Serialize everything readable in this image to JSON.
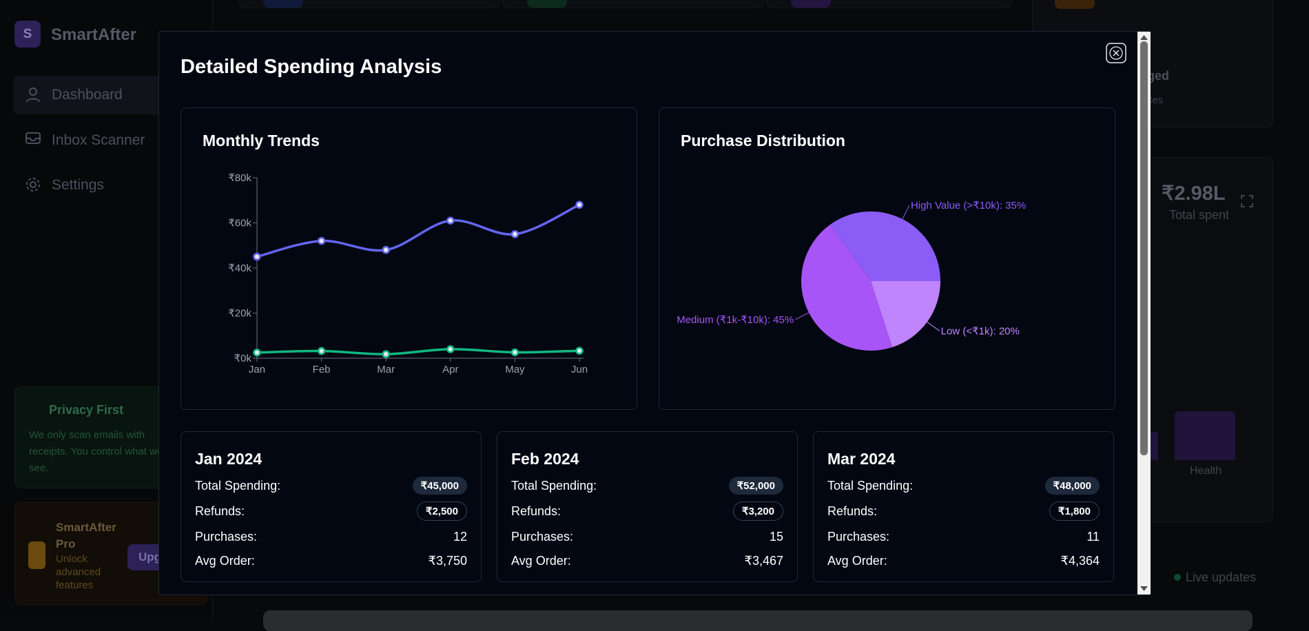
{
  "sidebar": {
    "logo": "S",
    "brand": "SmartAfter",
    "nav": [
      "Dashboard",
      "Inbox Scanner",
      "Settings"
    ],
    "privacy": {
      "title": "Privacy First",
      "text": "We only scan emails with receipts. You control what we see."
    },
    "pro": {
      "title": "SmartAfter Pro",
      "text": "Unlock advanced features",
      "button": "Upgrade"
    }
  },
  "background": {
    "fragments": [
      "ged",
      "ces"
    ],
    "total": "₹2.98L",
    "total_label": "Total spent",
    "category": "Health",
    "live": "Live updates"
  },
  "modal": {
    "title": "Detailed Spending Analysis",
    "months": [
      {
        "title": "Jan 2024",
        "rows": [
          {
            "label": "Total Spending:",
            "value": "₹45,000"
          },
          {
            "label": "Refunds:",
            "value": "₹2,500"
          },
          {
            "label": "Purchases:",
            "value": "12"
          },
          {
            "label": "Avg Order:",
            "value": "₹3,750"
          }
        ]
      },
      {
        "title": "Feb 2024",
        "rows": [
          {
            "label": "Total Spending:",
            "value": "₹52,000"
          },
          {
            "label": "Refunds:",
            "value": "₹3,200"
          },
          {
            "label": "Purchases:",
            "value": "15"
          },
          {
            "label": "Avg Order:",
            "value": "₹3,467"
          }
        ]
      },
      {
        "title": "Mar 2024",
        "rows": [
          {
            "label": "Total Spending:",
            "value": "₹48,000"
          },
          {
            "label": "Refunds:",
            "value": "₹1,800"
          },
          {
            "label": "Purchases:",
            "value": "11"
          },
          {
            "label": "Avg Order:",
            "value": "₹4,364"
          }
        ]
      }
    ]
  },
  "chart_data": [
    {
      "type": "line",
      "title": "Monthly Trends",
      "categories": [
        "Jan",
        "Feb",
        "Mar",
        "Apr",
        "May",
        "Jun"
      ],
      "series": [
        {
          "color": "#6366f1",
          "values": [
            45000,
            52000,
            48000,
            61000,
            55000,
            68000
          ]
        },
        {
          "color": "#10b981",
          "values": [
            2500,
            3200,
            1800,
            4000,
            2600,
            3300
          ]
        }
      ],
      "ylim": [
        0,
        80000
      ],
      "yticks": [
        {
          "value": 0,
          "label": "₹0k"
        },
        {
          "value": 20000,
          "label": "₹20k"
        },
        {
          "value": 40000,
          "label": "₹40k"
        },
        {
          "value": 60000,
          "label": "₹60k"
        },
        {
          "value": 80000,
          "label": "₹80k"
        }
      ]
    },
    {
      "type": "pie",
      "title": "Purchase Distribution",
      "values": [
        35,
        45,
        20
      ],
      "value_labels": [
        "High Value (>₹10k): 35%",
        "Medium (₹1k-₹10k): 45%",
        "Low (<₹1k): 20%"
      ],
      "colors": [
        "#8b5cf6",
        "#a855f7",
        "#c084fc"
      ]
    }
  ]
}
